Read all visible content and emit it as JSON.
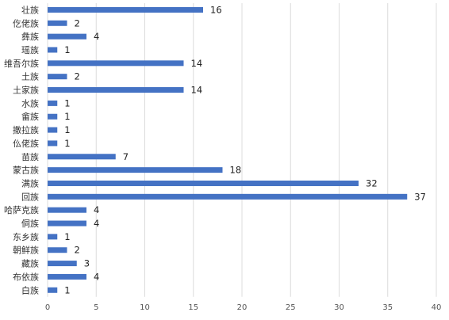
{
  "chart_data": {
    "type": "bar",
    "orientation": "horizontal",
    "categories": [
      "壮族",
      "仡佬族",
      "彝族",
      "瑶族",
      "维吾尔族",
      "土族",
      "土家族",
      "水族",
      "畲族",
      "撒拉族",
      "仫佬族",
      "苗族",
      "蒙古族",
      "满族",
      "回族",
      "哈萨克族",
      "侗族",
      "东乡族",
      "朝鲜族",
      "藏族",
      "布依族",
      "白族"
    ],
    "values": [
      16,
      2,
      4,
      1,
      14,
      2,
      14,
      1,
      1,
      1,
      1,
      7,
      18,
      32,
      37,
      4,
      4,
      1,
      2,
      3,
      4,
      1
    ],
    "xlim": [
      0,
      40
    ],
    "xticks": [
      0,
      5,
      10,
      15,
      20,
      25,
      30,
      35,
      40
    ],
    "title": "",
    "xlabel": "",
    "ylabel": "",
    "grid": "vertical",
    "legend": "none",
    "bar_color": "#4472c4"
  }
}
